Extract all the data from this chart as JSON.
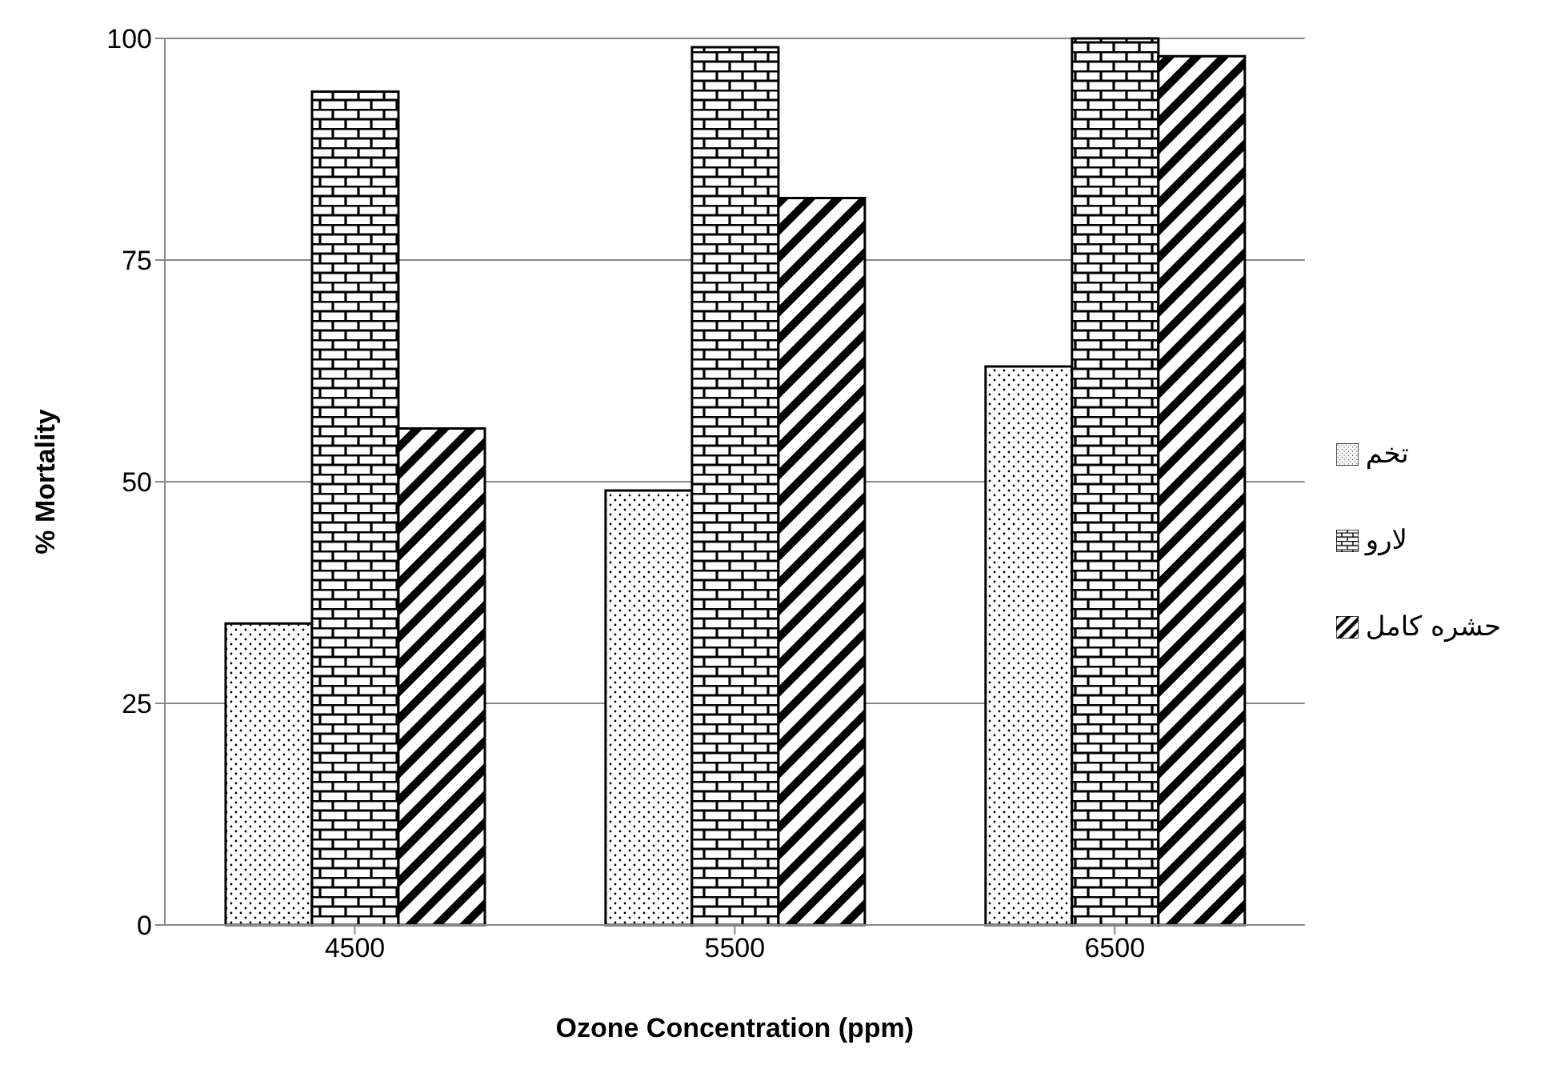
{
  "chart_data": {
    "type": "bar",
    "xlabel": "Ozone Concentration (ppm)",
    "ylabel": "% Mortality",
    "categories": [
      "4500",
      "5500",
      "6500"
    ],
    "series": [
      {
        "name": "تخم",
        "color": "#000000",
        "values": [
          34,
          49,
          63
        ]
      },
      {
        "name": "لارو",
        "color": "#000000",
        "values": [
          94,
          99,
          100
        ]
      },
      {
        "name": "حشره کامل",
        "color": "#000000",
        "values": [
          56,
          82,
          98
        ]
      }
    ],
    "ylim": [
      0,
      100
    ],
    "yticks": [
      0,
      25,
      50,
      75,
      100
    ],
    "grid": "y",
    "legend": "right"
  }
}
